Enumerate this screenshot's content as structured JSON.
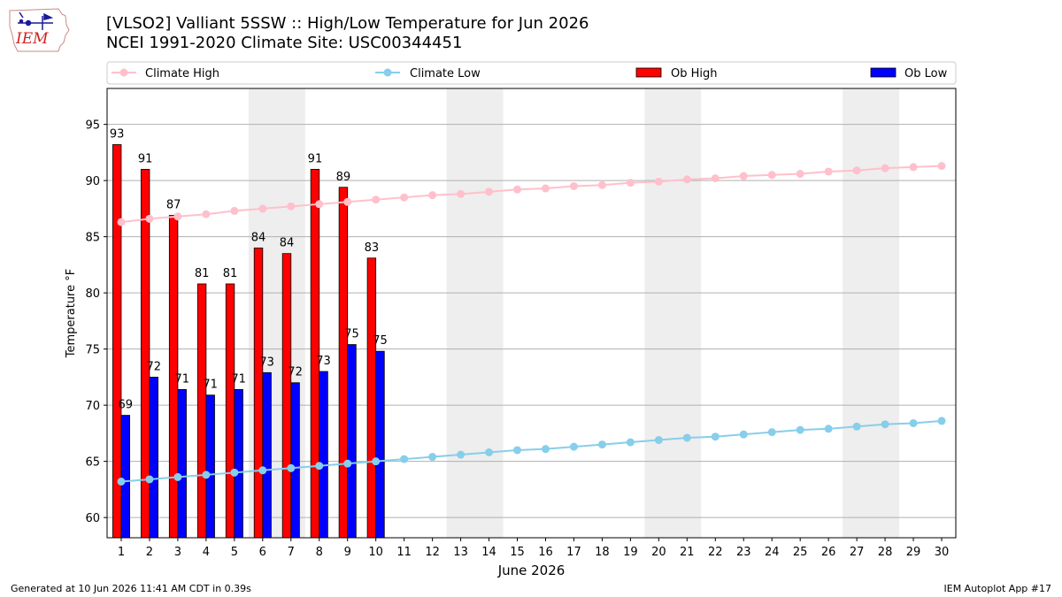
{
  "logo_text": "IEM",
  "title_line1": "[VLSO2] Valliant 5SSW :: High/Low Temperature for Jun 2026",
  "title_line2": "NCEI 1991-2020 Climate Site: USC00344451",
  "footer_left": "Generated at 10 Jun 2026 11:41 AM CDT in 0.39s",
  "footer_right": "IEM Autoplot App #17",
  "colors": {
    "ob_high": "#ff0000",
    "ob_low": "#0000ff",
    "climate_high": "#ffc0cb",
    "climate_low": "#87ceeb",
    "weekend_shade": "#eeeeee",
    "grid": "#b0b0b0"
  },
  "chart_data": {
    "type": "bar",
    "xlabel": "June 2026",
    "ylabel": "Temperature °F",
    "xlim": [
      0.5,
      30.5
    ],
    "ylim": [
      58.2,
      98.2
    ],
    "yticks": [
      60,
      65,
      70,
      75,
      80,
      85,
      90,
      95
    ],
    "grid": "horizontal",
    "legend_placement": "top, above plot",
    "days": [
      1,
      2,
      3,
      4,
      5,
      6,
      7,
      8,
      9,
      10,
      11,
      12,
      13,
      14,
      15,
      16,
      17,
      18,
      19,
      20,
      21,
      22,
      23,
      24,
      25,
      26,
      27,
      28,
      29,
      30
    ],
    "weekend_bands": [
      [
        5.5,
        7.5
      ],
      [
        12.5,
        14.5
      ],
      [
        19.5,
        21.5
      ],
      [
        26.5,
        28.5
      ]
    ],
    "legend": [
      "Climate High",
      "Climate Low",
      "Ob High",
      "Ob Low"
    ],
    "ob_high": {
      "name": "Ob High",
      "values": [
        93.2,
        91.0,
        86.9,
        80.8,
        80.8,
        84.0,
        83.5,
        91.0,
        89.4,
        83.1
      ],
      "labels": [
        "93",
        "91",
        "87",
        "81",
        "81",
        "84",
        "84",
        "91",
        "89",
        "83"
      ]
    },
    "ob_low": {
      "name": "Ob Low",
      "values": [
        69.1,
        72.5,
        71.4,
        70.9,
        71.4,
        72.9,
        72.0,
        73.0,
        75.4,
        74.8
      ],
      "labels": [
        "69",
        "72",
        "71",
        "71",
        "71",
        "73",
        "72",
        "73",
        "75",
        "75"
      ]
    },
    "climate_high": {
      "name": "Climate High",
      "values": [
        86.3,
        86.6,
        86.8,
        87.0,
        87.3,
        87.5,
        87.7,
        87.9,
        88.1,
        88.3,
        88.5,
        88.7,
        88.8,
        89.0,
        89.2,
        89.3,
        89.5,
        89.6,
        89.8,
        89.9,
        90.1,
        90.2,
        90.4,
        90.5,
        90.6,
        90.8,
        90.9,
        91.1,
        91.2,
        91.3
      ]
    },
    "climate_low": {
      "name": "Climate Low",
      "values": [
        63.2,
        63.4,
        63.6,
        63.8,
        64.0,
        64.2,
        64.4,
        64.6,
        64.8,
        65.0,
        65.2,
        65.4,
        65.6,
        65.8,
        66.0,
        66.1,
        66.3,
        66.5,
        66.7,
        66.9,
        67.1,
        67.2,
        67.4,
        67.6,
        67.8,
        67.9,
        68.1,
        68.3,
        68.4,
        68.6
      ]
    }
  }
}
